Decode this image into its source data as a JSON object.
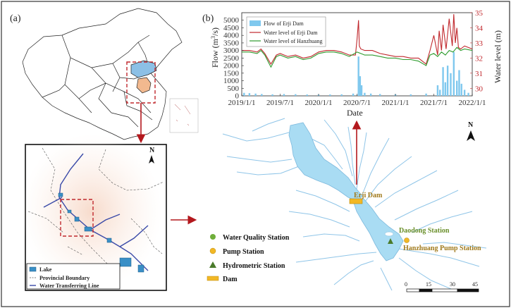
{
  "panels": {
    "a_label": "(a)",
    "b_label": "(b)"
  },
  "inset_legend": {
    "lake": "Lake",
    "boundary": "Provincial Boundary",
    "line": "Water Transferring Line"
  },
  "north_label": "N",
  "map_legend": {
    "wq": "Water Quality Station",
    "pump": "Pump Station",
    "hydro": "Hydrometric Station",
    "dam": "Dam"
  },
  "places": {
    "erji_dam": "Erji Dam",
    "daodong": "Daodong Station",
    "hanzhuang": "Hanzhuang Pump Station"
  },
  "scale": {
    "ticks": [
      "0",
      "15",
      "30",
      "45"
    ]
  },
  "colors": {
    "flow": "#7fc8ee",
    "erji": "#c0282d",
    "hanzhuang": "#2e9b2e",
    "lake": "#a9dcf3",
    "river": "#8fc5e8",
    "arrow": "#b3181d",
    "yellow": "#f2b825"
  },
  "chart_data": {
    "type": "bar+line",
    "xlabel": "Date",
    "ylabel_left": "Flow (m³/s)",
    "ylabel_left_parts": [
      "Flow (m",
      "3",
      "/s)"
    ],
    "ylabel_right": "Water level (m)",
    "ylim_left": [
      0,
      5500
    ],
    "ylim_right": [
      29.5,
      35
    ],
    "xlim": [
      2019.0,
      2022.0
    ],
    "yticks_left": [
      "0",
      "500",
      "1000",
      "1500",
      "2000",
      "2500",
      "3000",
      "3500",
      "4000",
      "4500",
      "5000"
    ],
    "yticks_left_values": [
      0,
      500,
      1000,
      1500,
      2000,
      2500,
      3000,
      3500,
      4000,
      4500,
      5000
    ],
    "yticks_right": [
      "30",
      "31",
      "32",
      "33",
      "34",
      "35"
    ],
    "yticks_right_values": [
      30,
      31,
      32,
      33,
      34,
      35
    ],
    "xticks": [
      "2019/1/1",
      "2019/7/1",
      "2020/1/1",
      "2020/7/1",
      "2021/1/1",
      "2021/7/1",
      "2022/1/1"
    ],
    "xticks_values": [
      2019.0,
      2019.5,
      2020.0,
      2020.5,
      2021.0,
      2021.5,
      2022.0
    ],
    "legend": [
      "Flow of Erji Dam",
      "Water level of Erji Dam",
      "Water level of Hanzhuang"
    ],
    "flow_series": {
      "name": "Flow of Erji Dam",
      "x": [
        2019.03,
        2019.1,
        2019.18,
        2019.26,
        2019.4,
        2019.55,
        2019.7,
        2019.85,
        2020.0,
        2020.15,
        2020.3,
        2020.45,
        2020.52,
        2020.54,
        2020.56,
        2020.6,
        2020.68,
        2020.8,
        2021.0,
        2021.2,
        2021.4,
        2021.55,
        2021.58,
        2021.62,
        2021.65,
        2021.68,
        2021.72,
        2021.76,
        2021.8,
        2021.83,
        2021.86,
        2021.9,
        2021.95
      ],
      "values": [
        200,
        180,
        150,
        120,
        100,
        120,
        110,
        90,
        80,
        90,
        100,
        150,
        2600,
        1300,
        700,
        200,
        150,
        120,
        100,
        100,
        150,
        700,
        400,
        1900,
        900,
        2000,
        1500,
        2900,
        1000,
        1700,
        800,
        400,
        200
      ]
    },
    "series": [
      {
        "name": "Water level of Erji Dam",
        "x": [
          2019.0,
          2019.1,
          2019.2,
          2019.25,
          2019.3,
          2019.38,
          2019.45,
          2019.5,
          2019.6,
          2019.7,
          2019.8,
          2019.9,
          2020.0,
          2020.1,
          2020.2,
          2020.3,
          2020.4,
          2020.48,
          2020.5,
          2020.52,
          2020.53,
          2020.55,
          2020.6,
          2020.7,
          2020.8,
          2020.9,
          2021.0,
          2021.1,
          2021.2,
          2021.3,
          2021.4,
          2021.45,
          2021.5,
          2021.55,
          2021.57,
          2021.6,
          2021.62,
          2021.66,
          2021.7,
          2021.74,
          2021.76,
          2021.78,
          2021.8,
          2021.82,
          2021.85,
          2021.9,
          2022.0
        ],
        "values": [
          32.5,
          32.5,
          32.4,
          32.6,
          32.3,
          31.6,
          32.2,
          32.3,
          32.1,
          32.2,
          32.0,
          32.1,
          32.4,
          32.5,
          32.5,
          32.4,
          32.2,
          32.2,
          33.2,
          34.5,
          32.8,
          32.6,
          32.5,
          32.5,
          32.3,
          32.2,
          32.1,
          32.1,
          32.0,
          32.0,
          31.6,
          32.5,
          33.5,
          32.2,
          33.8,
          32.5,
          34.2,
          32.6,
          34.6,
          32.8,
          34.9,
          33.0,
          34.0,
          32.7,
          32.6,
          32.8,
          32.6
        ]
      },
      {
        "name": "Water level of Hanzhuang",
        "x": [
          2019.0,
          2019.1,
          2019.2,
          2019.25,
          2019.3,
          2019.38,
          2019.45,
          2019.5,
          2019.6,
          2019.7,
          2019.8,
          2019.9,
          2020.0,
          2020.1,
          2020.2,
          2020.3,
          2020.4,
          2020.5,
          2020.55,
          2020.6,
          2020.7,
          2020.8,
          2020.9,
          2021.0,
          2021.1,
          2021.2,
          2021.3,
          2021.4,
          2021.45,
          2021.5,
          2021.55,
          2021.6,
          2021.65,
          2021.7,
          2021.75,
          2021.8,
          2021.85,
          2021.9,
          2022.0
        ],
        "values": [
          32.4,
          32.4,
          32.3,
          32.5,
          32.2,
          31.4,
          32.1,
          32.2,
          32.0,
          32.1,
          31.9,
          32.0,
          32.3,
          32.4,
          32.4,
          32.3,
          32.1,
          32.4,
          32.3,
          32.2,
          32.2,
          32.1,
          32.0,
          32.0,
          31.9,
          31.9,
          31.8,
          31.5,
          32.2,
          32.3,
          32.1,
          32.4,
          32.2,
          32.5,
          32.4,
          32.7,
          32.5,
          32.6,
          32.5
        ]
      }
    ]
  }
}
